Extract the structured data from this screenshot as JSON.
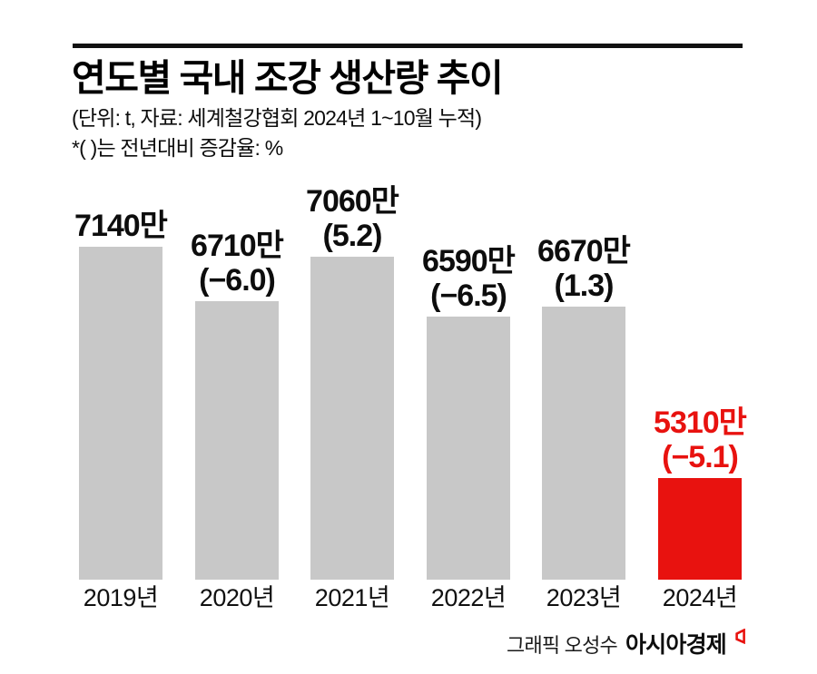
{
  "header": {
    "title": "연도별 국내 조강 생산량 추이",
    "subtitle": "(단위: t, 자료: 세계철강협회 2024년 1~10월 누적)",
    "note": "*( )는 전년대비 증감율: %"
  },
  "chart_data": {
    "type": "bar",
    "title": "연도별 국내 조강 생산량 추이",
    "unit": "만 t (ten-thousand tonnes)",
    "categories": [
      "2019년",
      "2020년",
      "2021년",
      "2022년",
      "2023년",
      "2024년"
    ],
    "values": [
      7140,
      6710,
      7060,
      6590,
      6670,
      5310
    ],
    "value_labels": [
      "7140만",
      "6710만",
      "7060만",
      "6590만",
      "6670만",
      "5310만"
    ],
    "change_labels": [
      "",
      "(−6.0)",
      "(5.2)",
      "(−6.5)",
      "(1.3)",
      "(−5.1)"
    ],
    "yoy_change_pct": [
      null,
      -6.0,
      5.2,
      -6.5,
      1.3,
      -5.1
    ],
    "highlight_index": 5,
    "bar_color": "#c8c8c8",
    "highlight_color": "#e8120f",
    "label_color": "#0d0d0d",
    "grid": false,
    "legend": false,
    "y_axis_truncated": true,
    "ylim_estimate": [
      4510,
      7300
    ],
    "note_2024": "2024 figure is Jan–Oct cumulative per World Steel Association"
  },
  "footer": {
    "credit": "그래픽 오성수",
    "brand": "아시아경제",
    "brand_mark_icon": "asiae-logo-mark",
    "brand_mark_color": "#e8120f"
  }
}
